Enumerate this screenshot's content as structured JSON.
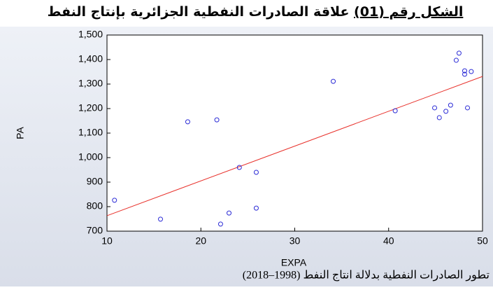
{
  "chart_data": {
    "type": "scatter",
    "title_label": "الشكل رقم (01)",
    "title": "علاقة الصادرات النفطية الجزائرية بإنتاج النفط",
    "x_label": "EXPA",
    "y_label": "PA",
    "caption": "تطور الصادرات النفطية بدلالة انتاج النفط (1998–2018)",
    "series": [
      {
        "color": "#2b2bd6",
        "x": [
          10.8,
          15.7,
          18.6,
          21.7,
          22.1,
          23.0,
          24.1,
          25.9,
          25.9,
          34.1,
          40.7,
          44.9,
          45.4,
          46.1,
          46.6,
          47.2,
          47.5,
          48.1,
          48.1,
          48.4,
          48.8
        ],
        "values": [
          826,
          749,
          1146,
          1154,
          729,
          774,
          960,
          940,
          794,
          1311,
          1191,
          1203,
          1163,
          1189,
          1214,
          1397,
          1426,
          1354,
          1340,
          1203,
          1351
        ]
      }
    ],
    "fit_line": {
      "color": "#e8302a",
      "x": [
        10,
        50
      ],
      "values": [
        763,
        1331
      ]
    },
    "xlim": [
      10,
      50
    ],
    "xticks": [
      10,
      20,
      30,
      40,
      50
    ],
    "ylim": [
      700,
      1500
    ],
    "yticks": [
      {
        "value": 700,
        "label": "700"
      },
      {
        "value": 800,
        "label": "800"
      },
      {
        "value": 900,
        "label": "900"
      },
      {
        "value": 1000,
        "label": "1,000"
      },
      {
        "value": 1100,
        "label": "1,100"
      },
      {
        "value": 1200,
        "label": "1,200"
      },
      {
        "value": 1300,
        "label": "1,300"
      },
      {
        "value": 1400,
        "label": "1,400"
      },
      {
        "value": 1500,
        "label": "1,500"
      }
    ]
  }
}
